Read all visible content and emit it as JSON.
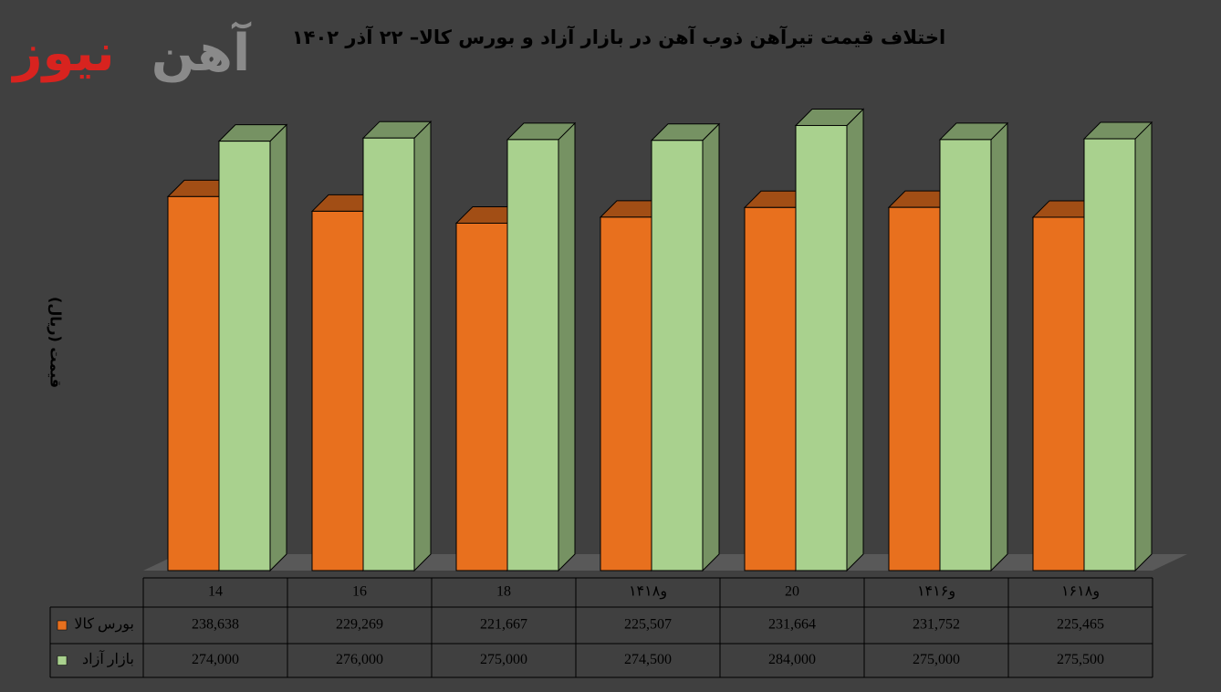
{
  "logo": {
    "first": "آهن",
    "second": "نیوز"
  },
  "chart_data": {
    "type": "bar3d",
    "title": "اختلاف قیمت تیرآهن ذوب آهن در بازار آزاد و بورس کالا– ۲۲ آذر ۱۴۰۲",
    "y_label": "قیمت (ریال)",
    "categories": [
      "14",
      "16",
      "18",
      "۱۴و۱۸",
      "20",
      "۱۴و۱۶",
      "۱۶و۱۸"
    ],
    "series": [
      {
        "name": "بورس کالا",
        "color": "#e8701e",
        "values": [
          238638,
          229269,
          221667,
          225507,
          231664,
          231752,
          225465
        ],
        "value_labels": [
          "238,638",
          "229,269",
          "221,667",
          "225,507",
          "231,664",
          "231,752",
          "225,465"
        ]
      },
      {
        "name": "بازار آزاد",
        "color": "#a9d18e",
        "values": [
          274000,
          276000,
          275000,
          274500,
          284000,
          275000,
          275500
        ],
        "value_labels": [
          "274,000",
          "276,000",
          "275,000",
          "274,500",
          "284,000",
          "275,000",
          "275,500"
        ]
      }
    ],
    "ylim": [
      0,
      300000
    ],
    "grid": false
  }
}
